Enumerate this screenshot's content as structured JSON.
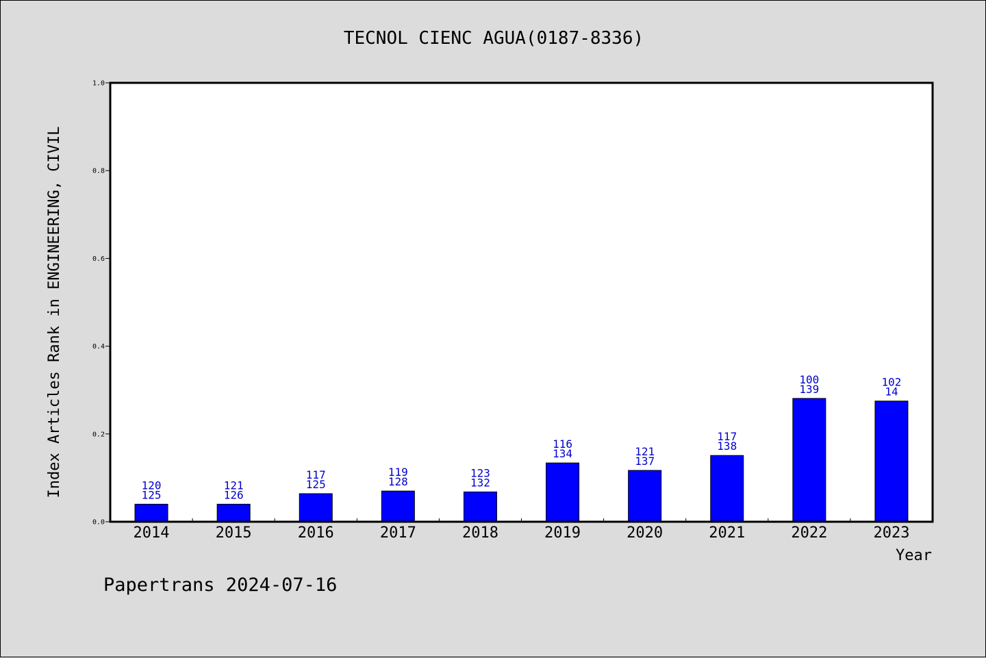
{
  "chart_data": {
    "type": "bar",
    "title": "TECNOL CIENC AGUA(0187-8336)",
    "xlabel": "Year",
    "ylabel": "Index Articles Rank in ENGINEERING, CIVIL",
    "ylim": [
      0,
      1.0
    ],
    "yticks": [
      "0.0",
      "0.2",
      "0.4",
      "0.6",
      "0.8",
      "1.0"
    ],
    "grid": false,
    "bar_color": "#0000ff",
    "label_color": "#0000cc",
    "categories": [
      "2014",
      "2015",
      "2016",
      "2017",
      "2018",
      "2019",
      "2020",
      "2021",
      "2022",
      "2023"
    ],
    "values": [
      0.04,
      0.04,
      0.064,
      0.07,
      0.068,
      0.134,
      0.117,
      0.151,
      0.281,
      0.275
    ],
    "labels_top": [
      "120",
      "121",
      "117",
      "119",
      "123",
      "116",
      "121",
      "117",
      "100",
      "102"
    ],
    "labels_bottom": [
      "125",
      "126",
      "125",
      "128",
      "132",
      "134",
      "137",
      "138",
      "139",
      "14"
    ]
  },
  "footer": "Papertrans 2024-07-16"
}
